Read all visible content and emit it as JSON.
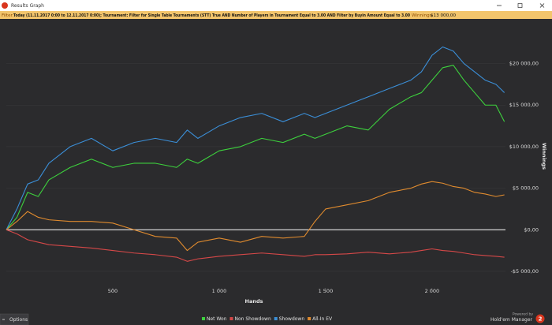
{
  "window": {
    "title": "Results Graph"
  },
  "filter": {
    "label": "Filter:",
    "text": "Today (11.11.2017 0:00 to 12.11.2017 0:00); Tournament: Filter for Single Table Tournaments (STT) True AND Number of Players in Tournament Equal to 3.00 AND Filter by Buyin Amount Equal to 3.00",
    "winnings_label": "Winnings:",
    "winnings_value": "$13 000,00"
  },
  "chart_data": {
    "type": "line",
    "x_label": "Hands",
    "y_label": "Winnings",
    "x": [
      0,
      50,
      100,
      150,
      200,
      300,
      400,
      500,
      600,
      700,
      800,
      850,
      900,
      1000,
      1100,
      1200,
      1300,
      1400,
      1450,
      1500,
      1600,
      1700,
      1800,
      1900,
      1950,
      2000,
      2050,
      2100,
      2150,
      2200,
      2250,
      2300,
      2340
    ],
    "series": [
      {
        "name": "Net Won",
        "color": "#3dd13d",
        "values": [
          0,
          1500,
          4500,
          4000,
          6000,
          7500,
          8500,
          7500,
          8000,
          8000,
          7500,
          8500,
          8000,
          9500,
          10000,
          11000,
          10500,
          11500,
          11000,
          11500,
          12500,
          12000,
          14500,
          16000,
          16500,
          18000,
          19500,
          19800,
          18000,
          16500,
          15000,
          15000,
          13000
        ]
      },
      {
        "name": "Non Showdown",
        "color": "#d64848",
        "values": [
          0,
          -500,
          -1200,
          -1500,
          -1800,
          -2000,
          -2200,
          -2500,
          -2800,
          -3000,
          -3300,
          -3800,
          -3500,
          -3200,
          -3000,
          -2800,
          -3000,
          -3200,
          -3000,
          -3000,
          -2900,
          -2700,
          -2900,
          -2700,
          -2500,
          -2300,
          -2500,
          -2600,
          -2800,
          -3000,
          -3100,
          -3200,
          -3300
        ]
      },
      {
        "name": "Showdown",
        "color": "#3b8fd8",
        "values": [
          0,
          2500,
          5500,
          6000,
          8000,
          10000,
          11000,
          9500,
          10500,
          11000,
          10500,
          12000,
          11000,
          12500,
          13500,
          14000,
          13000,
          14000,
          13500,
          14000,
          15000,
          16000,
          17000,
          18000,
          19000,
          21000,
          22000,
          21500,
          20000,
          19000,
          18000,
          17500,
          16500
        ]
      },
      {
        "name": "All-In EV",
        "color": "#e08b2e",
        "values": [
          0,
          1000,
          2200,
          1500,
          1200,
          1000,
          1000,
          800,
          0,
          -800,
          -1000,
          -2500,
          -1500,
          -1000,
          -1500,
          -800,
          -1000,
          -800,
          1000,
          2500,
          3000,
          3500,
          4500,
          5000,
          5500,
          5800,
          5600,
          5200,
          5000,
          4500,
          4300,
          4000,
          4200
        ]
      }
    ],
    "xlim": [
      0,
      2345
    ],
    "xticks": [
      500,
      {
        "value": 1000,
        "label": "1 000"
      },
      {
        "value": 1500,
        "label": "1 500"
      },
      {
        "value": 2000,
        "label": "2 000"
      }
    ],
    "ylim": [
      -7000,
      24800
    ],
    "yticks": [
      {
        "value": -5000,
        "label": "-$5 000,00"
      },
      {
        "value": 0,
        "label": "$0,00"
      },
      {
        "value": 5000,
        "label": "$5 000,00"
      },
      {
        "value": 10000,
        "label": "$10 000,00"
      },
      {
        "value": 15000,
        "label": "$15 000,00"
      },
      {
        "value": 20000,
        "label": "$20 000,00"
      }
    ],
    "grid": true
  },
  "footer": {
    "options": "Options",
    "powered_by": "Powered by",
    "brand": "Hold'em Manager",
    "brand_version": "2"
  }
}
